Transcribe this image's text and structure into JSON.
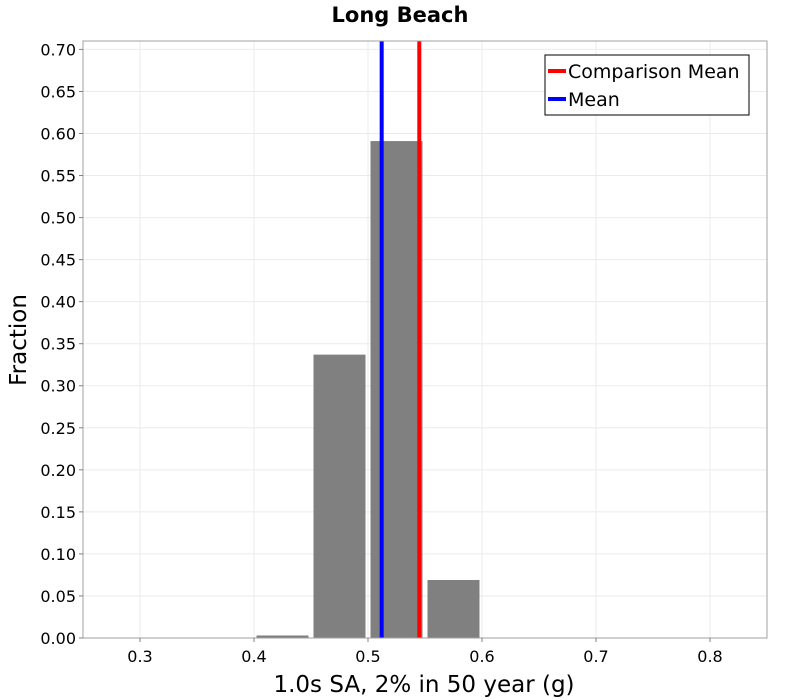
{
  "chart_data": {
    "type": "bar",
    "title": "Long Beach",
    "xlabel": "1.0s SA, 2% in 50 year (g)",
    "ylabel": "Fraction",
    "xlim": [
      0.25,
      0.85
    ],
    "ylim": [
      0.0,
      0.71
    ],
    "x_ticks": [
      "0.3",
      "0.4",
      "0.5",
      "0.6",
      "0.7",
      "0.8"
    ],
    "y_ticks": [
      "0.00",
      "0.05",
      "0.10",
      "0.15",
      "0.20",
      "0.25",
      "0.30",
      "0.35",
      "0.40",
      "0.45",
      "0.50",
      "0.55",
      "0.60",
      "0.65",
      "0.70"
    ],
    "bin_width": 0.05,
    "bars": [
      {
        "x": 0.425,
        "value": 0.003
      },
      {
        "x": 0.475,
        "value": 0.337
      },
      {
        "x": 0.525,
        "value": 0.591
      },
      {
        "x": 0.575,
        "value": 0.069
      }
    ],
    "bar_color": "#808080",
    "grid": true,
    "legend_position": "top-right",
    "vlines": [
      {
        "name": "Comparison Mean",
        "x": 0.545,
        "color": "#ff0000"
      },
      {
        "name": "Mean",
        "x": 0.512,
        "color": "#0000ff"
      }
    ]
  }
}
